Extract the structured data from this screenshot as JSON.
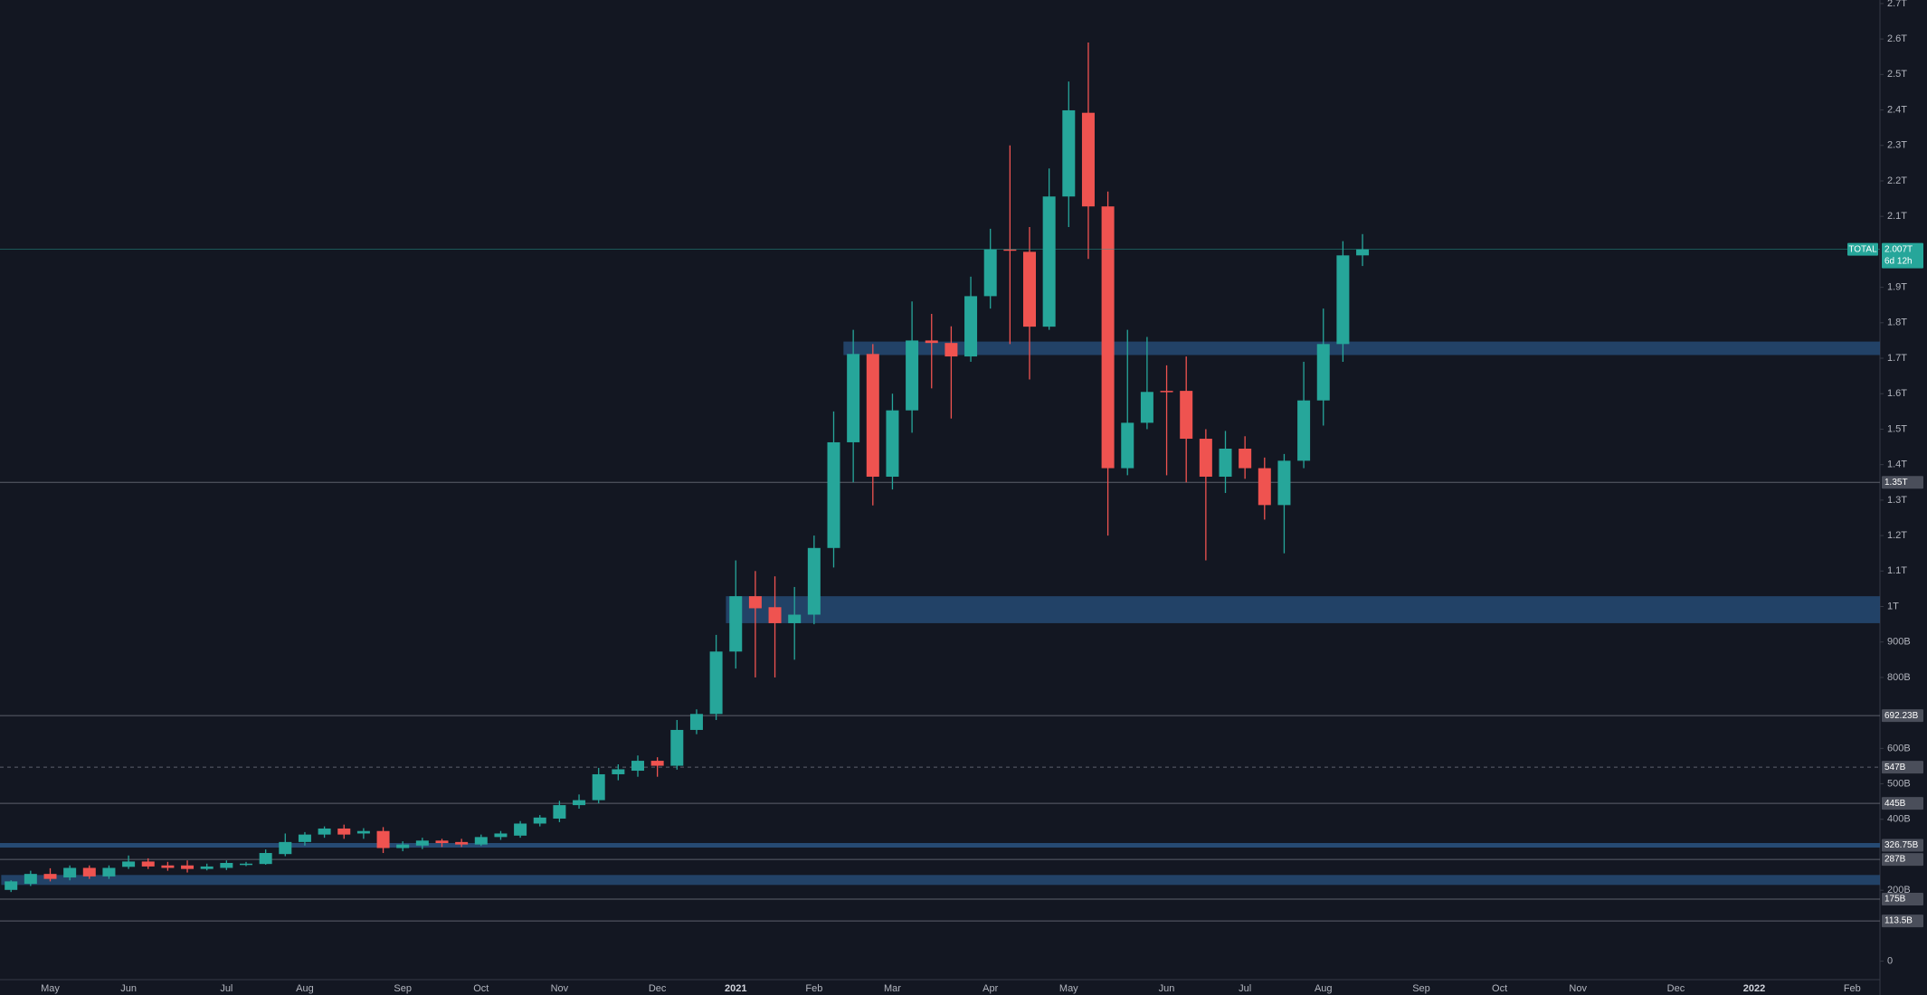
{
  "chart_data": {
    "type": "candlestick",
    "symbol": "TOTAL",
    "last_price": {
      "value": 2007,
      "label": "2.007T"
    },
    "countdown": "6d 12h",
    "up_color": "#26a69a",
    "down_color": "#ef5350",
    "zone_color": "#264a73",
    "level_color": "#5d606b",
    "categories": [
      null,
      null,
      "May",
      null,
      null,
      null,
      "Jun",
      null,
      null,
      null,
      null,
      "Jul",
      null,
      null,
      null,
      "Aug",
      null,
      null,
      null,
      null,
      "Sep",
      null,
      null,
      null,
      "Oct",
      null,
      null,
      null,
      "Nov",
      null,
      null,
      null,
      null,
      "Dec",
      null,
      null,
      null,
      "2021",
      null,
      null,
      null,
      "Feb",
      null,
      null,
      null,
      "Mar",
      null,
      null,
      null,
      null,
      "Apr",
      null,
      null,
      null,
      "May",
      null,
      null,
      null,
      null,
      "Jun",
      null,
      null,
      null,
      "Jul",
      null,
      null,
      null,
      "Aug",
      null,
      null,
      null,
      null,
      "Sep",
      null,
      null,
      null,
      "Oct",
      null,
      null,
      null,
      "Nov",
      null,
      null,
      null,
      null,
      "Dec",
      null,
      null,
      null,
      "2022",
      null,
      null,
      null,
      null,
      "Feb",
      null
    ],
    "open": [
      201,
      218,
      246,
      236,
      263,
      239,
      266,
      281,
      270,
      270,
      260,
      263,
      272,
      274,
      302,
      336,
      357,
      374,
      360,
      367,
      319,
      326,
      340,
      336,
      329,
      350,
      354,
      388,
      402,
      440,
      454,
      527,
      537,
      565,
      551,
      652,
      697,
      873,
      1029,
      998,
      953,
      977,
      1165,
      1463,
      1712,
      1366,
      1553,
      1750,
      1743,
      1705,
      1875,
      2007,
      2000,
      1789,
      2156,
      2392,
      2128,
      1390,
      1518,
      1608,
      1608,
      1473,
      1366,
      1445,
      1390,
      1286,
      1411,
      1581,
      1740,
      1990,
      null,
      null,
      null,
      null,
      null,
      null,
      null,
      null,
      null,
      null,
      null,
      null,
      null,
      null,
      null,
      null,
      null,
      null,
      null,
      null,
      null,
      null,
      null,
      null,
      null,
      null
    ],
    "high": [
      228,
      255,
      262,
      270,
      270,
      270,
      298,
      290,
      280,
      284,
      275,
      284,
      280,
      315,
      360,
      364,
      380,
      385,
      375,
      378,
      338,
      348,
      345,
      345,
      357,
      367,
      395,
      412,
      452,
      470,
      545,
      555,
      580,
      575,
      680,
      710,
      920,
      1130,
      1100,
      1085,
      1055,
      1200,
      1550,
      1780,
      1740,
      1600,
      1860,
      1825,
      1790,
      1930,
      2065,
      2300,
      2070,
      2235,
      2480,
      2590,
      2170,
      1780,
      1760,
      1680,
      1705,
      1500,
      1495,
      1480,
      1420,
      1430,
      1690,
      1840,
      2030,
      2050,
      null,
      null,
      null,
      null,
      null,
      null,
      null,
      null,
      null,
      null,
      null,
      null,
      null,
      null,
      null,
      null,
      null,
      null,
      null,
      null,
      null,
      null,
      null,
      null,
      null,
      null
    ],
    "low": [
      195,
      212,
      225,
      228,
      232,
      232,
      260,
      260,
      255,
      250,
      256,
      257,
      268,
      272,
      296,
      326,
      348,
      345,
      345,
      305,
      310,
      316,
      322,
      322,
      325,
      342,
      348,
      380,
      392,
      430,
      445,
      510,
      520,
      520,
      540,
      640,
      680,
      825,
      800,
      800,
      850,
      950,
      1110,
      1350,
      1285,
      1330,
      1490,
      1615,
      1530,
      1690,
      1840,
      1740,
      1640,
      1780,
      2070,
      1980,
      1200,
      1370,
      1500,
      1370,
      1350,
      1130,
      1320,
      1360,
      1245,
      1150,
      1390,
      1510,
      1690,
      1960,
      null,
      null,
      null,
      null,
      null,
      null,
      null,
      null,
      null,
      null,
      null,
      null,
      null,
      null,
      null,
      null,
      null,
      null,
      null,
      null,
      null,
      null,
      null,
      null,
      null,
      null
    ],
    "close": [
      225,
      246,
      232,
      263,
      239,
      263,
      281,
      267,
      263,
      260,
      267,
      277,
      275,
      305,
      336,
      357,
      374,
      357,
      367,
      319,
      329,
      340,
      333,
      329,
      350,
      360,
      388,
      405,
      440,
      454,
      527,
      541,
      565,
      551,
      652,
      697,
      873,
      1029,
      995,
      953,
      977,
      1165,
      1463,
      1712,
      1366,
      1553,
      1750,
      1743,
      1705,
      1875,
      2007,
      2003,
      1789,
      2156,
      2399,
      2128,
      1390,
      1518,
      1605,
      1605,
      1473,
      1366,
      1445,
      1390,
      1286,
      1411,
      1581,
      1740,
      1990,
      2007,
      null,
      null,
      null,
      null,
      null,
      null,
      null,
      null,
      null,
      null,
      null,
      null,
      null,
      null,
      null,
      null,
      null,
      null,
      null,
      null,
      null,
      null,
      null,
      null,
      null,
      null
    ],
    "ylim": [
      -52,
      2710
    ],
    "yticks": [
      0,
      {
        "value": 200,
        "label": "200B"
      },
      {
        "value": 400,
        "label": "400B"
      },
      {
        "value": 500,
        "label": "500B"
      },
      {
        "value": 600,
        "label": "600B"
      },
      {
        "value": 800,
        "label": "800B"
      },
      {
        "value": 900,
        "label": "900B"
      },
      {
        "value": 1000,
        "label": "1T"
      },
      {
        "value": 1100,
        "label": "1.1T"
      },
      {
        "value": 1200,
        "label": "1.2T"
      },
      {
        "value": 1300,
        "label": "1.3T"
      },
      {
        "value": 1400,
        "label": "1.4T"
      },
      {
        "value": 1500,
        "label": "1.5T"
      },
      {
        "value": 1600,
        "label": "1.6T"
      },
      {
        "value": 1700,
        "label": "1.7T"
      },
      {
        "value": 1800,
        "label": "1.8T"
      },
      {
        "value": 1900,
        "label": "1.9T"
      },
      {
        "value": 2100,
        "label": "2.1T"
      },
      {
        "value": 2200,
        "label": "2.2T"
      },
      {
        "value": 2300,
        "label": "2.3T"
      },
      {
        "value": 2400,
        "label": "2.4T"
      },
      {
        "value": 2500,
        "label": "2.5T"
      },
      {
        "value": 2600,
        "label": "2.6T"
      },
      {
        "value": 2700,
        "label": "2.7T"
      }
    ],
    "zones": [
      {
        "from": 1709,
        "to": 1747,
        "start": 43
      },
      {
        "from": 953,
        "to": 1029,
        "start": 37
      },
      {
        "from": 215,
        "to": 243,
        "start": 0
      }
    ],
    "levels": [
      {
        "value": 1350,
        "label": "1.35T",
        "style": "solid"
      },
      {
        "value": 692.23,
        "label": "692.23B",
        "style": "solid"
      },
      {
        "value": 547,
        "label": "547B",
        "style": "dashed"
      },
      {
        "value": 445,
        "label": "445B",
        "style": "solid"
      },
      {
        "value": 326.75,
        "label": "326.75B",
        "style": "thick"
      },
      {
        "value": 287,
        "label": "287B",
        "style": "solid"
      },
      {
        "value": 175,
        "label": "175B",
        "style": "solid"
      },
      {
        "value": 113.5,
        "label": "113.5B",
        "style": "solid"
      }
    ]
  }
}
